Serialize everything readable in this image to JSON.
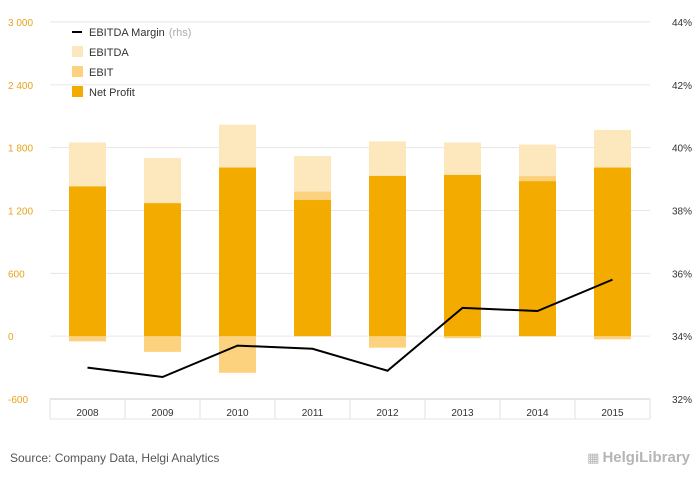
{
  "chart_data": {
    "type": "bar",
    "categories": [
      "2008",
      "2009",
      "2010",
      "2011",
      "2012",
      "2013",
      "2014",
      "2015"
    ],
    "series": [
      {
        "name": "EBITDA",
        "axis": "left",
        "values": [
          1850,
          1700,
          2020,
          1720,
          1860,
          1850,
          1830,
          1970
        ],
        "color": "#fde8bd"
      },
      {
        "name": "EBIT",
        "axis": "left",
        "values": [
          -50,
          -150,
          -350,
          1380,
          -110,
          -20,
          1530,
          -30
        ],
        "color": "#fdd27f"
      },
      {
        "name": "Net Profit",
        "axis": "left",
        "values": [
          1430,
          1270,
          1610,
          1300,
          1530,
          1540,
          1480,
          1610
        ],
        "color": "#f4ab00"
      },
      {
        "name": "EBITDA Margin",
        "name_note": "(rhs)",
        "axis": "right",
        "type": "line",
        "values": [
          33.0,
          32.7,
          33.7,
          33.6,
          32.9,
          34.9,
          34.8,
          35.8
        ],
        "color": "#000000"
      }
    ],
    "y_left": {
      "ylim": [
        -600,
        3000
      ],
      "ticks": [
        -600,
        0,
        600,
        1200,
        1800,
        2400,
        3000
      ],
      "tick_labels": [
        "-600",
        "0",
        "600",
        "1 200",
        "1 800",
        "2 400",
        "3 000"
      ],
      "color": "#e8a317"
    },
    "y_right": {
      "ylim": [
        32,
        44
      ],
      "ticks": [
        32,
        34,
        36,
        38,
        40,
        42,
        44
      ],
      "tick_labels": [
        "32%",
        "34%",
        "36%",
        "38%",
        "40%",
        "42%",
        "44%"
      ]
    },
    "legend_order": [
      "EBITDA Margin",
      "EBITDA",
      "EBIT",
      "Net Profit"
    ],
    "legend_position": "top-left",
    "grid": true
  },
  "footer": {
    "source": "Source: Company Data, Helgi Analytics",
    "brand": "HelgiLibrary",
    "brand_icon": "building-icon"
  }
}
